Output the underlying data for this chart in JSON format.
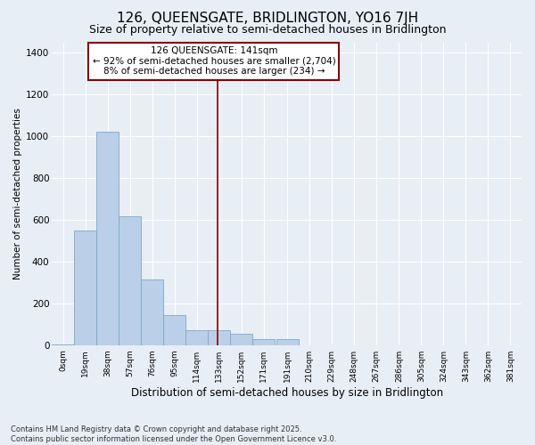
{
  "title": "126, QUEENSGATE, BRIDLINGTON, YO16 7JH",
  "subtitle": "Size of property relative to semi-detached houses in Bridlington",
  "xlabel": "Distribution of semi-detached houses by size in Bridlington",
  "ylabel": "Number of semi-detached properties",
  "footer_line1": "Contains HM Land Registry data © Crown copyright and database right 2025.",
  "footer_line2": "Contains public sector information licensed under the Open Government Licence v3.0.",
  "annotation_title": "126 QUEENSGATE: 141sqm",
  "annotation_line2": "← 92% of semi-detached houses are smaller (2,704)",
  "annotation_line3": "8% of semi-detached houses are larger (234) →",
  "property_size": 141,
  "bar_categories": [
    "0sqm",
    "19sqm",
    "38sqm",
    "57sqm",
    "76sqm",
    "95sqm",
    "114sqm",
    "133sqm",
    "152sqm",
    "171sqm",
    "191sqm",
    "210sqm",
    "229sqm",
    "248sqm",
    "267sqm",
    "286sqm",
    "305sqm",
    "324sqm",
    "343sqm",
    "362sqm",
    "381sqm"
  ],
  "bar_left_edges": [
    0,
    19,
    38,
    57,
    76,
    95,
    114,
    133,
    152,
    171,
    191,
    210,
    229,
    248,
    267,
    286,
    305,
    324,
    343,
    362,
    381
  ],
  "bar_widths": [
    19,
    19,
    19,
    19,
    19,
    19,
    19,
    19,
    19,
    19,
    19,
    19,
    19,
    19,
    19,
    19,
    19,
    19,
    19,
    19,
    19
  ],
  "bar_heights": [
    5,
    550,
    1020,
    615,
    315,
    145,
    70,
    70,
    55,
    30,
    30,
    0,
    0,
    0,
    0,
    0,
    0,
    0,
    0,
    0,
    0
  ],
  "bar_color": "#BBCFE8",
  "bar_edge_color": "#7aaac8",
  "vline_x": 141,
  "vline_color": "#8B0000",
  "annotation_box_edgecolor": "#8B0000",
  "background_color": "#E8EEF5",
  "ylim": [
    0,
    1450
  ],
  "yticks": [
    0,
    200,
    400,
    600,
    800,
    1000,
    1200,
    1400
  ],
  "xlim": [
    0,
    400
  ],
  "grid_color": "#FFFFFF",
  "title_fontsize": 11,
  "subtitle_fontsize": 9,
  "annotation_fontsize": 7.5
}
